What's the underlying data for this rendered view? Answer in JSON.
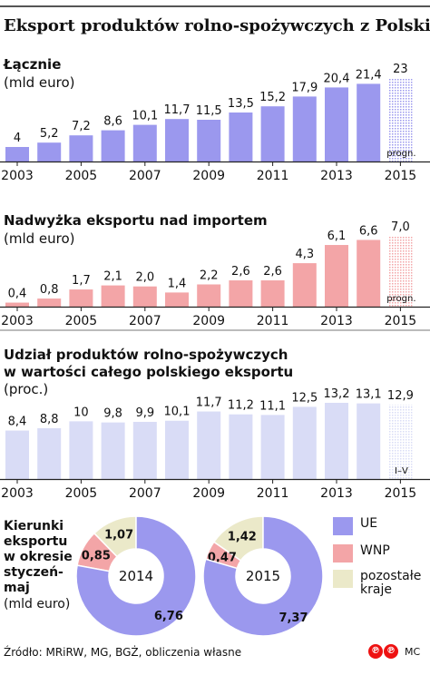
{
  "title": "Eksport produktów rolno-spożywczych z Polski",
  "colors": {
    "purple": "#9b98ee",
    "pink": "#f3a5a7",
    "lightBlue": "#d9dcf6",
    "cream": "#ebe9c9",
    "ink": "#111111"
  },
  "x_tick_labels": [
    "2003",
    "2005",
    "2007",
    "2009",
    "2011",
    "2013",
    "2015"
  ],
  "chart_data": [
    {
      "type": "bar",
      "title": "Łącznie",
      "unit": "(mld euro)",
      "categories": [
        "2003",
        "2004",
        "2005",
        "2006",
        "2007",
        "2008",
        "2009",
        "2010",
        "2011",
        "2012",
        "2013",
        "2014",
        "2015"
      ],
      "values": [
        4,
        5.2,
        7.2,
        8.6,
        10.1,
        11.7,
        11.5,
        13.5,
        15.2,
        17.9,
        20.4,
        21.4,
        23
      ],
      "value_labels": [
        "4",
        "5,2",
        "7,2",
        "8,6",
        "10,1",
        "11,7",
        "11,5",
        "13,5",
        "15,2",
        "17,9",
        "20,4",
        "21,4",
        "23"
      ],
      "forecast_note": "progn.",
      "ylim": [
        0,
        23
      ]
    },
    {
      "type": "bar",
      "title": "Nadwyżka eksportu nad importem",
      "unit": "(mld euro)",
      "categories": [
        "2003",
        "2004",
        "2005",
        "2006",
        "2007",
        "2008",
        "2009",
        "2010",
        "2011",
        "2012",
        "2013",
        "2014",
        "2015"
      ],
      "values": [
        0.4,
        0.8,
        1.7,
        2.1,
        2.0,
        1.4,
        2.2,
        2.6,
        2.6,
        4.3,
        6.1,
        6.6,
        7.0
      ],
      "value_labels": [
        "0,4",
        "0,8",
        "1,7",
        "2,1",
        "2,0",
        "1,4",
        "2,2",
        "2,6",
        "2,6",
        "4,3",
        "6,1",
        "6,6",
        "7,0"
      ],
      "forecast_note": "progn.",
      "ylim": [
        0,
        7
      ]
    },
    {
      "type": "bar",
      "title": "Udział produktów rolno-spożywczych w wartości całego polskiego eksportu",
      "unit": "(proc.)",
      "categories": [
        "2003",
        "2004",
        "2005",
        "2006",
        "2007",
        "2008",
        "2009",
        "2010",
        "2011",
        "2012",
        "2013",
        "2014",
        "2015"
      ],
      "values": [
        8.4,
        8.8,
        10,
        9.8,
        9.9,
        10.1,
        11.7,
        11.2,
        11.1,
        12.5,
        13.2,
        13.1,
        12.9
      ],
      "value_labels": [
        "8,4",
        "8,8",
        "10",
        "9,8",
        "9,9",
        "10,1",
        "11,7",
        "11,2",
        "11,1",
        "12,5",
        "13,2",
        "13,1",
        "12,9"
      ],
      "forecast_note": "I–V",
      "ylim": [
        0,
        13.2
      ]
    },
    {
      "type": "pie",
      "title": "Kierunki eksportu w okresie styczeń-maj",
      "unit": "(mld euro)",
      "label": "2014",
      "categories": [
        "UE",
        "WNP",
        "pozostałe kraje"
      ],
      "values": [
        6.76,
        0.85,
        1.07
      ],
      "value_labels": [
        "6,76",
        "0,85",
        "1,07"
      ]
    },
    {
      "type": "pie",
      "title": "Kierunki eksportu w okresie styczeń-maj",
      "unit": "(mld euro)",
      "label": "2015",
      "categories": [
        "UE",
        "WNP",
        "pozostałe kraje"
      ],
      "values": [
        7.37,
        0.47,
        1.42
      ],
      "value_labels": [
        "7,37",
        "0,47",
        "1,42"
      ]
    }
  ],
  "pie_section": {
    "label": "Kierunki eksportu w okresie styczeń-maj",
    "unit": "(mld euro)"
  },
  "legend": [
    {
      "label": "UE",
      "color": "#9b98ee"
    },
    {
      "label": "WNP",
      "color": "#f3a5a7"
    },
    {
      "label": "pozostałe kraje",
      "color": "#ebe9c9"
    }
  ],
  "source": "Źródło: MRiRW, MG, BGŻ, obliczenia własne",
  "logo": {
    "symbol": "℗",
    "initials": "MC"
  }
}
